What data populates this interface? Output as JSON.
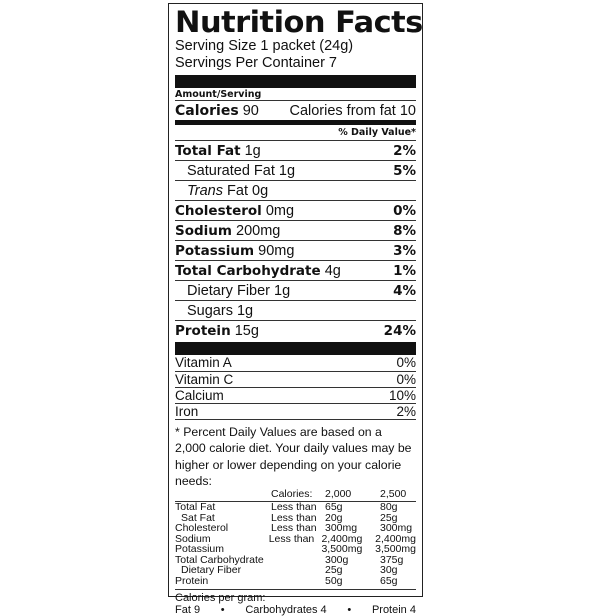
{
  "title": "Nutrition Facts",
  "serving_size": "Serving Size 1 packet (24g)",
  "servings_per_container": "Servings Per Container 7",
  "amount_per_serving": "Amount/Serving",
  "calories": {
    "label": "Calories",
    "value": "90",
    "from_fat": "Calories from fat 10"
  },
  "daily_value_header": "% Daily Value*",
  "nutrients": [
    {
      "name": "Total Fat",
      "amount": "1g",
      "dv": "2%",
      "bold": true,
      "indent": false
    },
    {
      "name": "Saturated Fat",
      "amount": "1g",
      "dv": "5%",
      "bold": false,
      "indent": true
    },
    {
      "name": "Trans",
      "amount": "Fat 0g",
      "dv": "",
      "bold": false,
      "indent": true,
      "italic": true
    },
    {
      "name": "Cholesterol",
      "amount": "0mg",
      "dv": "0%",
      "bold": true,
      "indent": false
    },
    {
      "name": "Sodium",
      "amount": "200mg",
      "dv": "8%",
      "bold": true,
      "indent": false
    },
    {
      "name": "Potassium",
      "amount": "90mg",
      "dv": "3%",
      "bold": true,
      "indent": false
    },
    {
      "name": "Total Carbohydrate",
      "amount": "4g",
      "dv": "1%",
      "bold": true,
      "indent": false
    },
    {
      "name": "Dietary Fiber",
      "amount": "1g",
      "dv": "4%",
      "bold": false,
      "indent": true
    },
    {
      "name": "Sugars",
      "amount": "1g",
      "dv": "",
      "bold": false,
      "indent": true
    },
    {
      "name": "Protein",
      "amount": "15g",
      "dv": "24%",
      "bold": true,
      "indent": false
    }
  ],
  "vitamins": [
    {
      "name": "Vitamin A",
      "dv": "0%"
    },
    {
      "name": "Vitamin C",
      "dv": "0%"
    },
    {
      "name": "Calcium",
      "dv": "10%"
    },
    {
      "name": "Iron",
      "dv": "2%"
    }
  ],
  "footnote": "* Percent Daily Values are based on a 2,000 calorie diet. Your daily values may be higher or lower depending on your calorie needs:",
  "dv_table": {
    "header": [
      "",
      "Calories:",
      "2,000",
      "2,500"
    ],
    "rows": [
      [
        "Total Fat",
        "Less than",
        "65g",
        "80g"
      ],
      [
        " Sat Fat",
        "Less than",
        "20g",
        "25g"
      ],
      [
        "Cholesterol",
        "Less than",
        "300mg",
        "300mg"
      ],
      [
        "Sodium",
        "Less than",
        "2,400mg",
        "2,400mg"
      ],
      [
        "Potassium",
        "",
        "3,500mg",
        "3,500mg"
      ],
      [
        "Total Carbohydrate",
        "",
        "300g",
        "375g"
      ],
      [
        " Dietary Fiber",
        "",
        "25g",
        "30g"
      ],
      [
        "Protein",
        "",
        "50g",
        "65g"
      ]
    ]
  },
  "calories_per_gram": {
    "label": "Calories per  gram:",
    "fat": "Fat 9",
    "bullet": "•",
    "carbs": "Carbohydrates 4",
    "protein": "Protein 4"
  }
}
